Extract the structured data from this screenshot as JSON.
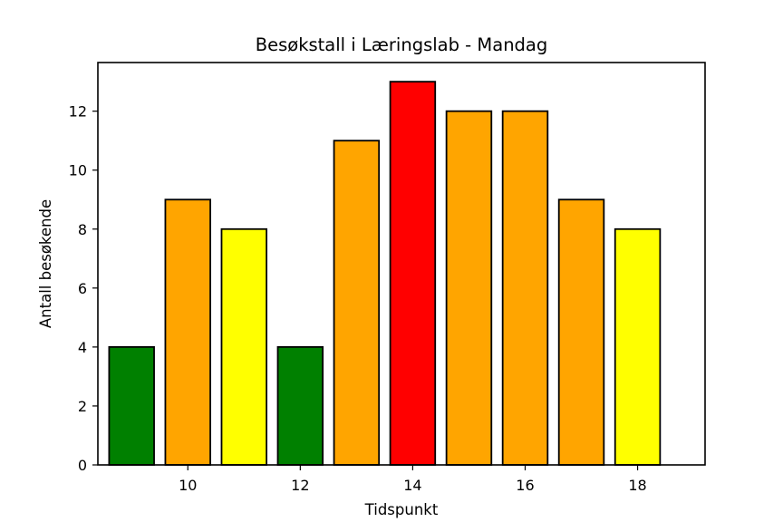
{
  "chart_data": {
    "type": "bar",
    "title": "Besøkstall i Læringslab - Mandag",
    "xlabel": "Tidspunkt",
    "ylabel": "Antall besøkende",
    "x": [
      9,
      10,
      11,
      12,
      13,
      14,
      15,
      16,
      17,
      18
    ],
    "values": [
      4,
      9,
      8,
      4,
      11,
      13,
      12,
      12,
      9,
      8
    ],
    "bar_colors": [
      "#008000",
      "#FFA500",
      "#FFFF00",
      "#008000",
      "#FFA500",
      "#FF0000",
      "#FFA500",
      "#FFA500",
      "#FFA500",
      "#FFFF00"
    ],
    "edge_color": "#000000",
    "xlim": [
      8.4,
      19.2
    ],
    "ylim": [
      0,
      13.65
    ],
    "xticks": [
      10,
      12,
      14,
      16,
      18
    ],
    "yticks": [
      0,
      2,
      4,
      6,
      8,
      10,
      12
    ],
    "grid": false,
    "legend": "none"
  }
}
